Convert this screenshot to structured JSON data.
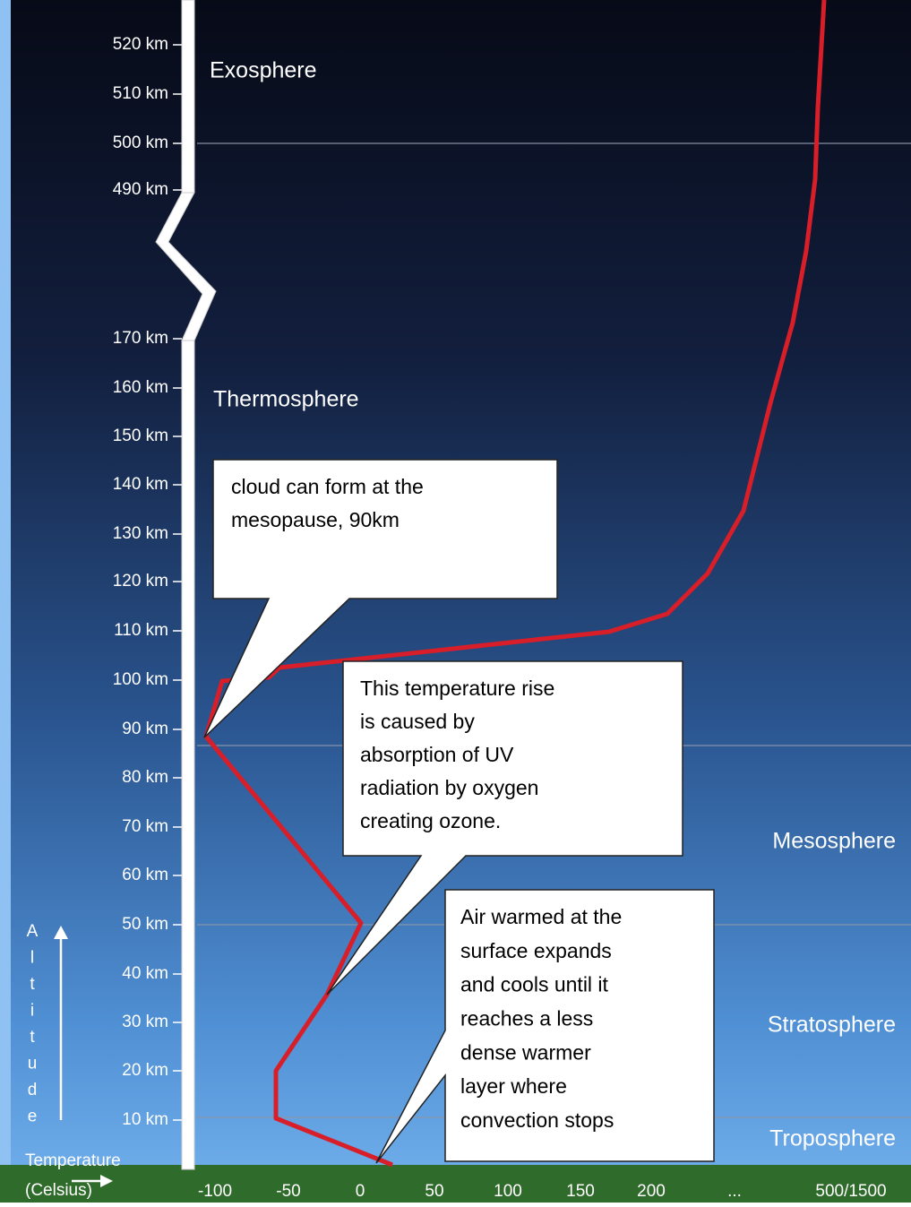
{
  "altitude_labels": [
    "520 km",
    "510 km",
    "500 km",
    "490 km",
    "170 km",
    "160 km",
    "150 km",
    "140 km",
    "130 km",
    "120 km",
    "110 km",
    "100 km",
    "90 km",
    "80 km",
    "70 km",
    "60 km",
    "50 km",
    "40 km",
    "30 km",
    "20 km",
    "10 km"
  ],
  "temperature_labels": [
    "-100",
    "-50",
    "0",
    "50",
    "100",
    "150",
    "200",
    "...",
    "500/1500"
  ],
  "axis_title_letters": [
    "A",
    "l",
    "t",
    "i",
    "t",
    "u",
    "d",
    "e"
  ],
  "temperature_title": [
    "Temperature",
    "(Celsius)"
  ],
  "layers": [
    "Exosphere",
    "Thermosphere",
    "Mesosphere",
    "Stratosphere",
    "Troposphere"
  ],
  "callouts": [
    {
      "lines": [
        "cloud can form at the",
        "mesopause, 90km"
      ]
    },
    {
      "lines": [
        "This temperature rise",
        "is caused by",
        "absorption of UV",
        "radiation by oxygen",
        "creating ozone."
      ]
    },
    {
      "lines": [
        "Air warmed at the",
        "surface expands",
        "and cools until it",
        "reaches a less",
        "dense warmer",
        "layer where",
        "convection stops"
      ]
    }
  ]
}
